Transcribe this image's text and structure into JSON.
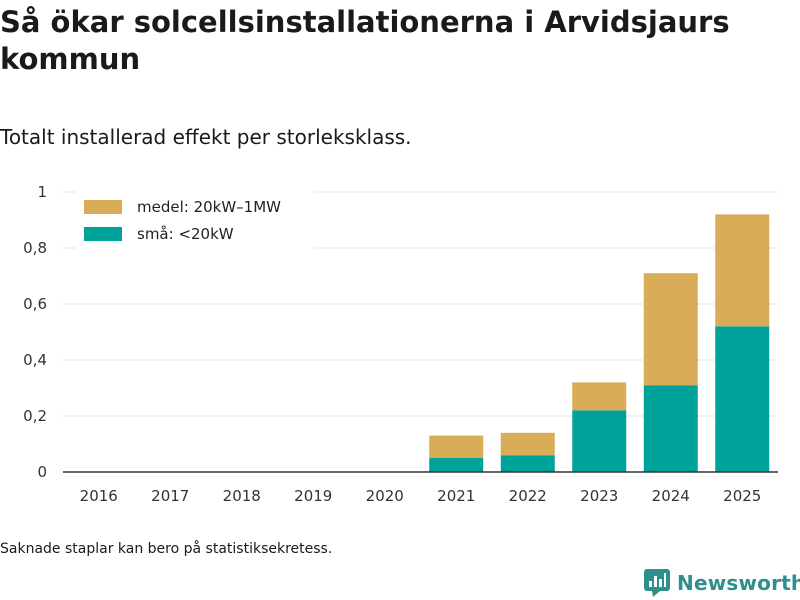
{
  "header": {
    "title": "Så ökar solcellsinstallationerna i Arvidsjaurs kommun",
    "subtitle": "Totalt installerad effekt per storleksklass."
  },
  "footer": {
    "note": "Saknade staplar kan bero på statistiksekretess.",
    "brand": "Newsworthy"
  },
  "colors": {
    "small": "#00a39a",
    "medium": "#d9ac57",
    "grid": "#e6e6e6",
    "axis": "#333333"
  },
  "chart_data": {
    "type": "bar",
    "stacked": true,
    "title": "Så ökar solcellsinstallationerna i Arvidsjaurs kommun",
    "subtitle": "Totalt installerad effekt per storleksklass.",
    "categories": [
      "2016",
      "2017",
      "2018",
      "2019",
      "2020",
      "2021",
      "2022",
      "2023",
      "2024",
      "2025"
    ],
    "series": [
      {
        "name": "små: <20kW",
        "color": "#00a39a",
        "values": [
          0,
          0,
          0,
          0,
          0,
          0.05,
          0.06,
          0.22,
          0.31,
          0.52
        ]
      },
      {
        "name": "medel: 20kW–1MW",
        "color": "#d9ac57",
        "values": [
          0,
          0,
          0,
          0,
          0,
          0.08,
          0.08,
          0.1,
          0.4,
          0.4
        ]
      }
    ],
    "legend_order": [
      "medel: 20kW–1MW",
      "små: <20kW"
    ],
    "legend_position": "top-left",
    "ylim": [
      0,
      1
    ],
    "yticks": [
      0,
      0.2,
      0.4,
      0.6,
      0.8,
      1
    ],
    "ytick_labels": [
      "0",
      "0,2",
      "0,4",
      "0,6",
      "0,8",
      "1"
    ],
    "xlabel": "",
    "ylabel": "",
    "grid": true
  }
}
